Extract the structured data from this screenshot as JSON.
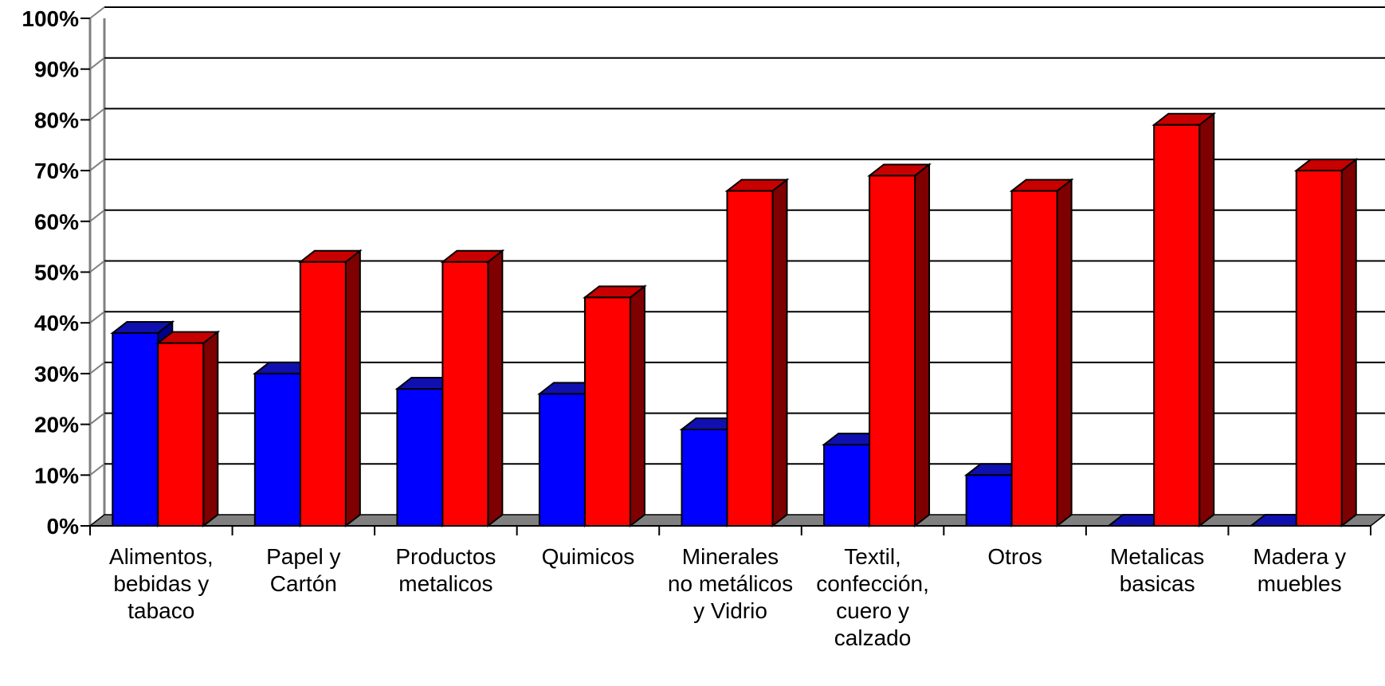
{
  "chart_data": {
    "type": "bar",
    "title": "",
    "xlabel": "",
    "ylabel": "",
    "ylim": [
      0,
      100
    ],
    "y_ticks": [
      "0%",
      "10%",
      "20%",
      "30%",
      "40%",
      "50%",
      "60%",
      "70%",
      "80%",
      "90%",
      "100%"
    ],
    "y_tick_values": [
      0,
      10,
      20,
      30,
      40,
      50,
      60,
      70,
      80,
      90,
      100
    ],
    "grid": true,
    "legend": "none",
    "style": "3d-clustered-column",
    "categories": [
      [
        "Alimentos,",
        "bebidas y",
        "tabaco"
      ],
      [
        "Papel y",
        "Cartón"
      ],
      [
        "Productos",
        "metalicos"
      ],
      [
        "Quimicos"
      ],
      [
        "Minerales",
        "no metálicos",
        "y Vidrio"
      ],
      [
        "Textil,",
        "confección,",
        "cuero y",
        "calzado"
      ],
      [
        "Otros"
      ],
      [
        "Metalicas",
        "basicas"
      ],
      [
        "Madera y",
        "muebles"
      ]
    ],
    "series": [
      {
        "values": [
          38,
          30,
          27,
          26,
          19,
          16,
          10,
          0,
          0
        ],
        "color": "#0000ff",
        "side_color": "#00008b",
        "top_color": "#1010b0"
      },
      {
        "values": [
          36,
          52,
          52,
          45,
          66,
          69,
          66,
          79,
          70
        ],
        "color": "#ff0000",
        "side_color": "#7f0000",
        "top_color": "#c80000"
      }
    ]
  }
}
